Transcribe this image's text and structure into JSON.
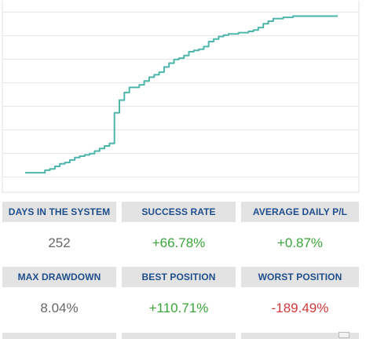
{
  "chart_data": {
    "type": "line",
    "color": "#4db6ac",
    "grid": true,
    "x": [
      0,
      4,
      8,
      12,
      16,
      20,
      24,
      28,
      32,
      36,
      40,
      44,
      48,
      52,
      56,
      60,
      64,
      68,
      72,
      76,
      80,
      84,
      88,
      92,
      96,
      100,
      104,
      108,
      112,
      116,
      120,
      124,
      128,
      132,
      136,
      140,
      144,
      148,
      152,
      156,
      160,
      164,
      168,
      172,
      176,
      180,
      184,
      188,
      192,
      196,
      200,
      204,
      208,
      212,
      216,
      220,
      224,
      228,
      232,
      236,
      240,
      244,
      248,
      252
    ],
    "values": [
      3,
      3,
      3,
      3,
      5,
      6,
      8,
      10,
      11,
      13,
      15,
      16,
      17,
      18,
      20,
      22,
      24,
      26,
      50,
      60,
      66,
      70,
      70,
      72,
      75,
      78,
      80,
      82,
      86,
      89,
      92,
      93,
      95,
      98,
      99,
      100,
      102,
      106,
      108,
      110,
      111,
      112,
      112,
      113,
      113,
      114,
      115,
      117,
      120,
      122,
      124,
      124,
      125,
      125,
      126,
      126,
      126,
      126,
      126,
      126,
      126,
      126,
      126,
      126
    ]
  },
  "stats": {
    "row1": [
      {
        "label": "DAYS IN THE SYSTEM",
        "value": "252",
        "color": "#666666"
      },
      {
        "label": "SUCCESS RATE",
        "value": "+66.78%",
        "color": "#3aa53a"
      },
      {
        "label": "AVERAGE DAILY P/L",
        "value": "+0.87%",
        "color": "#3aa53a"
      }
    ],
    "row2": [
      {
        "label": "MAX DRAWDOWN",
        "value": "8.04%",
        "color": "#666666"
      },
      {
        "label": "BEST POSITION",
        "value": "+110.71%",
        "color": "#3aa53a"
      },
      {
        "label": "WORST POSITION",
        "value": "-189.49%",
        "color": "#d13a3a"
      }
    ]
  }
}
